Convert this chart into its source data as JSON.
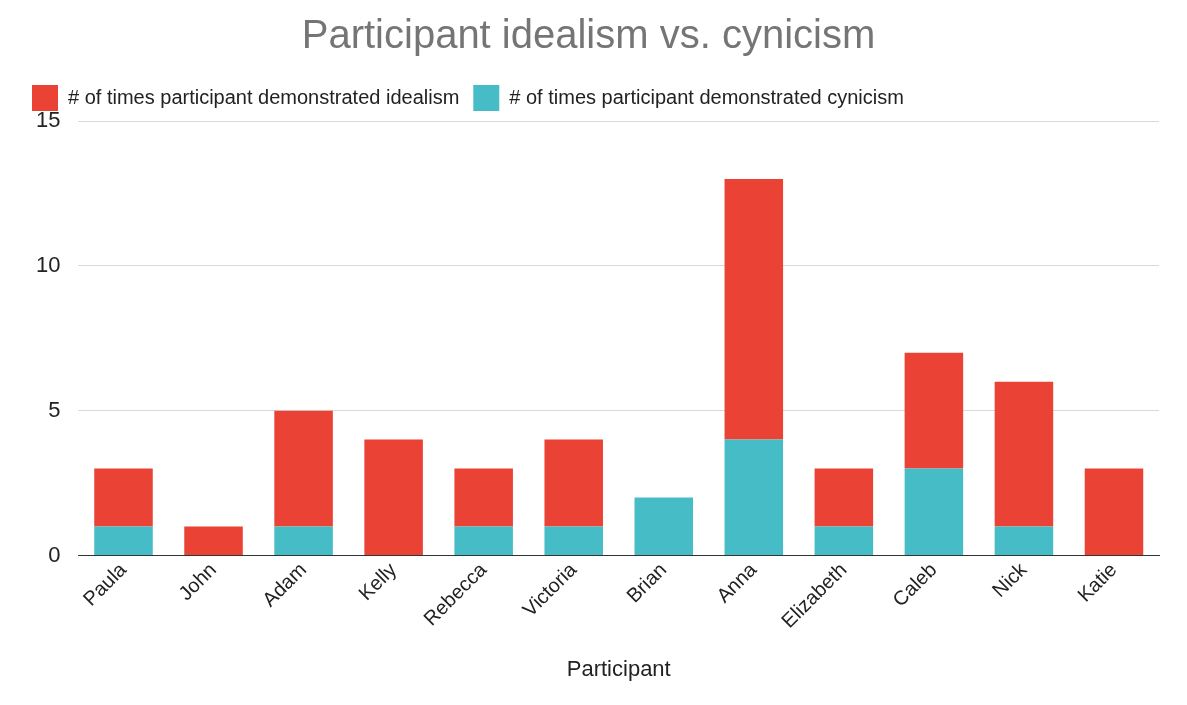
{
  "chart_data": {
    "type": "bar",
    "title": "Participant idealism vs. cynicism",
    "xlabel": "Participant",
    "categories": [
      "Paula",
      "John",
      "Adam",
      "Kelly",
      "Rebecca",
      "Victoria",
      "Brian",
      "Anna",
      "Elizabeth",
      "Caleb",
      "Nick",
      "Katie"
    ],
    "stacked": true,
    "series": [
      {
        "name": "# of times participant demonstrated cynicism",
        "color": "#46bdc6",
        "values": [
          1,
          0,
          1,
          0,
          1,
          1,
          2,
          4,
          1,
          3,
          1,
          0
        ]
      },
      {
        "name": "# of times participant demonstrated idealism",
        "color": "#ea4335",
        "values": [
          2,
          1,
          4,
          4,
          2,
          3,
          0,
          9,
          2,
          4,
          5,
          3
        ]
      }
    ],
    "ylim": [
      0,
      15
    ],
    "yticks": [
      0,
      5,
      10,
      15
    ],
    "grid": "y",
    "legend": "top left"
  }
}
